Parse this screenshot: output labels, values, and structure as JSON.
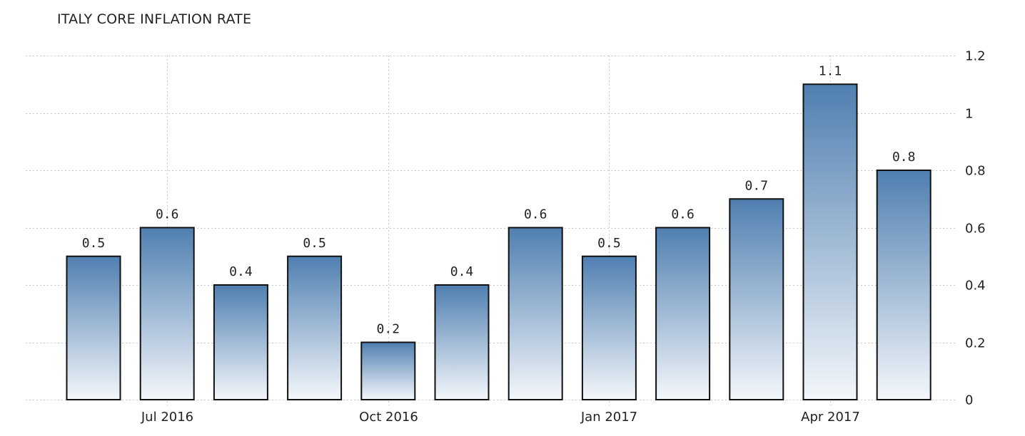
{
  "chart_data": {
    "type": "bar",
    "title": "ITALY CORE INFLATION RATE",
    "categories": [
      "2016-06",
      "2016-07",
      "2016-08",
      "2016-09",
      "2016-10",
      "2016-11",
      "2016-12",
      "2017-01",
      "2017-02",
      "2017-03",
      "2017-04",
      "2017-05"
    ],
    "values": [
      0.5,
      0.6,
      0.4,
      0.5,
      0.2,
      0.4,
      0.6,
      0.5,
      0.6,
      0.7,
      1.1,
      0.8
    ],
    "data_labels": [
      "0.5",
      "0.6",
      "0.4",
      "0.5",
      "0.2",
      "0.4",
      "0.6",
      "0.5",
      "0.6",
      "0.7",
      "1.1",
      "0.8"
    ],
    "x_ticks": [
      {
        "category": "2016-07",
        "label": "Jul 2016"
      },
      {
        "category": "2016-10",
        "label": "Oct 2016"
      },
      {
        "category": "2017-01",
        "label": "Jan 2017"
      },
      {
        "category": "2017-04",
        "label": "Apr 2017"
      }
    ],
    "y_ticks": [
      {
        "value": 0,
        "label": "0"
      },
      {
        "value": 0.2,
        "label": "0.2"
      },
      {
        "value": 0.4,
        "label": "0.4"
      },
      {
        "value": 0.6,
        "label": "0.6"
      },
      {
        "value": 0.8,
        "label": "0.8"
      },
      {
        "value": 1.0,
        "label": "1"
      },
      {
        "value": 1.2,
        "label": "1.2"
      }
    ],
    "xlabel": "",
    "ylabel": "",
    "ylim": [
      0,
      1.2
    ],
    "y_axis_side": "right",
    "grid": true,
    "legend": "none",
    "colors": {
      "bar_top": "#4f7fb0",
      "bar_bottom": "#f4f7fb",
      "bar_outline": "#111111",
      "grid": "#c8c8c8",
      "text": "#222222"
    }
  }
}
